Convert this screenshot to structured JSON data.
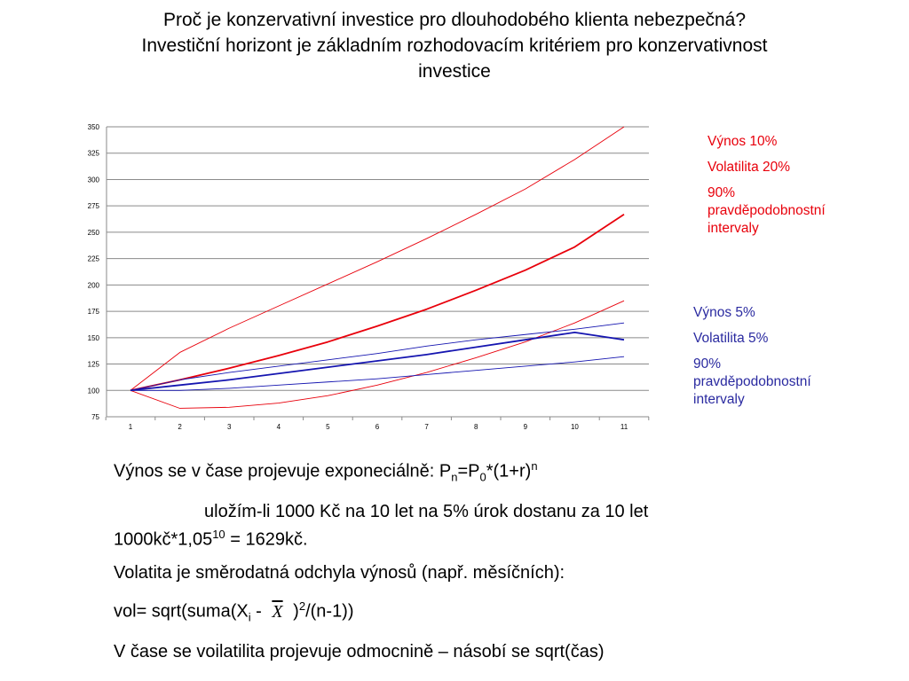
{
  "slide": {
    "title_lines": [
      "Proč je konzervativní investice pro dlouhodobého klienta nebezpečná?",
      "Investiční horizont je základním rozhodovacím kritériem pro konzervativnost",
      "investice"
    ]
  },
  "legend_red": {
    "line1": "Výnos 10%",
    "line2": "Volatilita 20%",
    "line3a": "90%",
    "line3b": "pravděpodobnostní",
    "line3c": "intervaly",
    "color": "#e8000b"
  },
  "legend_blue": {
    "line1": "Výnos 5%",
    "line2": "Volatilita 5%",
    "line3a": "90%",
    "line3b": "pravděpodobnostní",
    "line3c": "intervaly",
    "color": "#2a2aa0"
  },
  "body": {
    "p1_text": "Výnos se v čase projevuje exponeciálně: P",
    "p1_sub1": "n",
    "p1_mid": "=P",
    "p1_sub2": "0",
    "p1_tail": "*(1+r)",
    "p1_sup": "n",
    "p2_line1": "uložím-li 1000 Kč na 10 let na 5% úrok dostanu za 10 let",
    "p2_line2a": "1000kč*1,05",
    "p2_sup": "10",
    "p2_line2b": " = 1629kč.",
    "p3": "Volatita je směrodatná odchyla výnosů (např. měsíčních):",
    "p4_a": "vol= sqrt(suma(X",
    "p4_sub": "i",
    "p4_b": " - ",
    "p4_x": "X",
    "p4_c": " )",
    "p4_sup": "2",
    "p4_d": "/(n-1))",
    "p5": "V čase se voilatilita projevuje odmocnině – násobí se sqrt(čas)"
  },
  "chart_data": {
    "type": "line",
    "x": [
      1,
      2,
      3,
      4,
      5,
      6,
      7,
      8,
      9,
      10,
      11
    ],
    "ylim": [
      75,
      350
    ],
    "yticks": [
      75,
      100,
      125,
      150,
      175,
      200,
      225,
      250,
      275,
      300,
      325,
      350
    ],
    "grid": true,
    "series": [
      {
        "color": "#e8000b",
        "width": 1.8,
        "values": [
          100,
          110,
          121,
          133,
          146,
          161,
          177,
          195,
          214,
          236,
          267
        ]
      },
      {
        "color": "#e8000b",
        "width": 0.9,
        "values": [
          100,
          136,
          159,
          180,
          201,
          222,
          244,
          267,
          291,
          319,
          350
        ]
      },
      {
        "color": "#e8000b",
        "width": 0.9,
        "values": [
          100,
          83,
          84,
          88,
          95,
          105,
          117,
          131,
          146,
          164,
          185
        ]
      },
      {
        "color": "#1515b0",
        "width": 1.8,
        "values": [
          100,
          105,
          110,
          116,
          122,
          128,
          134,
          141,
          148,
          155,
          148
        ]
      },
      {
        "color": "#1515b0",
        "width": 0.9,
        "values": [
          100,
          110,
          117,
          123,
          129,
          135,
          142,
          148,
          153,
          158,
          164
        ]
      },
      {
        "color": "#1515b0",
        "width": 0.9,
        "values": [
          100,
          100,
          102,
          105,
          108,
          111,
          115,
          119,
          123,
          127,
          132
        ]
      }
    ]
  }
}
